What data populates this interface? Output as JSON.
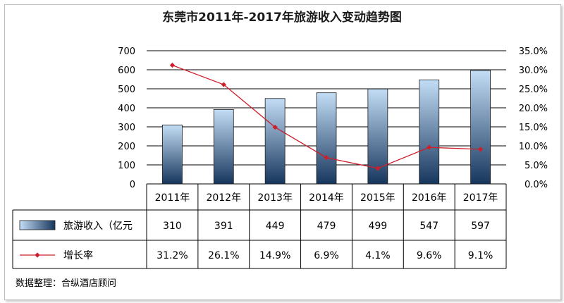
{
  "chart_data": {
    "type": "bar",
    "title": "东莞市2011年-2017年旅游收入变动趋势图",
    "categories": [
      "2011年",
      "2012年",
      "2013年",
      "2014年",
      "2015年",
      "2016年",
      "2017年"
    ],
    "y_left": {
      "min": 0,
      "max": 700,
      "ticks": [
        "0",
        "100",
        "200",
        "300",
        "400",
        "500",
        "600",
        "700"
      ]
    },
    "y_right": {
      "min": 0,
      "max": 35,
      "ticks": [
        "0.0%",
        "5.0%",
        "10.0%",
        "15.0%",
        "20.0%",
        "25.0%",
        "30.0%",
        "35.0%"
      ]
    },
    "series": [
      {
        "name": "旅游收入（亿元",
        "type": "bar",
        "axis": "left",
        "values": [
          310,
          391,
          449,
          479,
          499,
          547,
          597
        ],
        "labels": [
          "310",
          "391",
          "449",
          "479",
          "499",
          "547",
          "597"
        ]
      },
      {
        "name": "增长率",
        "type": "line",
        "axis": "right",
        "values": [
          31.2,
          26.1,
          14.9,
          6.9,
          4.1,
          9.6,
          9.1
        ],
        "labels": [
          "31.2%",
          "26.1%",
          "14.9%",
          "6.9%",
          "4.1%",
          "9.6%",
          "9.1%"
        ]
      }
    ],
    "grid": true,
    "legend": "data-table",
    "source_note": "数据整理：合纵酒店顾问"
  },
  "colors": {
    "bar_top": "#c3ddf5",
    "bar_bottom": "#17365d",
    "line": "#cc1f2b",
    "grid": "#000000"
  }
}
